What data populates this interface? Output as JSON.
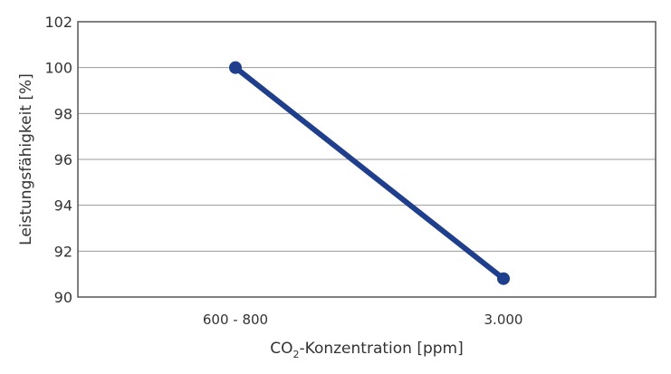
{
  "chart_data": {
    "type": "line",
    "title": "",
    "xlabel": "CO2-Konzentration [ppm]",
    "xlabel_parts": {
      "pre": "CO",
      "sub": "2",
      "post": "-Konzentration [ppm]"
    },
    "ylabel": "Leistungsfähigkeit [%]",
    "categories": [
      "600 - 800",
      "3.000"
    ],
    "series": [
      {
        "name": "Leistungsfähigkeit",
        "values": [
          100,
          90.8
        ],
        "color": "#1f3f8c"
      }
    ],
    "ylim": [
      90,
      102
    ],
    "yticks": [
      90,
      92,
      94,
      96,
      98,
      100,
      102
    ],
    "grid": true,
    "legend": "none"
  }
}
